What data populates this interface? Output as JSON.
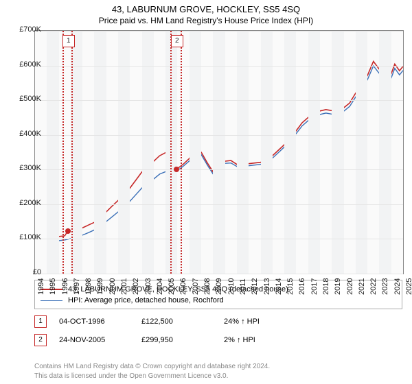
{
  "title": "43, LABURNUM GROVE, HOCKLEY, SS5 4SQ",
  "subtitle": "Price paid vs. HM Land Registry's House Price Index (HPI)",
  "chart": {
    "type": "line",
    "background_color": "#fafafa",
    "panel_border_color": "#888888",
    "grid_color": "#e5e5e5",
    "band_color": "#f2f3f4",
    "ylim": [
      0,
      700000
    ],
    "ytick_step": 100000,
    "ytick_labels": [
      "£0",
      "£100K",
      "£200K",
      "£300K",
      "£400K",
      "£500K",
      "£600K",
      "£700K"
    ],
    "xlim": [
      1994,
      2025
    ],
    "xticks": [
      1994,
      1995,
      1996,
      1997,
      1998,
      1999,
      2000,
      2001,
      2002,
      2003,
      2004,
      2005,
      2006,
      2007,
      2008,
      2009,
      2010,
      2011,
      2012,
      2013,
      2014,
      2015,
      2016,
      2017,
      2018,
      2019,
      2020,
      2021,
      2022,
      2023,
      2024,
      2025
    ],
    "label_fontsize": 11,
    "series": [
      {
        "name": "43, LABURNUM GROVE, HOCKLEY, SS5 4SQ (detached house)",
        "color": "#c62828",
        "line_width": 1.6,
        "data": [
          [
            1995.0,
            103000
          ],
          [
            1995.5,
            104000
          ],
          [
            1996.0,
            107000
          ],
          [
            1996.5,
            109000
          ],
          [
            1996.76,
            122500
          ],
          [
            1997.0,
            123000
          ],
          [
            1997.5,
            126000
          ],
          [
            1998.0,
            132000
          ],
          [
            1998.5,
            140000
          ],
          [
            1999.0,
            148000
          ],
          [
            1999.5,
            159000
          ],
          [
            2000.0,
            178000
          ],
          [
            2000.5,
            195000
          ],
          [
            2001.0,
            211000
          ],
          [
            2001.5,
            225000
          ],
          [
            2002.0,
            247000
          ],
          [
            2002.5,
            270000
          ],
          [
            2003.0,
            293000
          ],
          [
            2003.5,
            307000
          ],
          [
            2004.0,
            324000
          ],
          [
            2004.5,
            340000
          ],
          [
            2005.0,
            349000
          ],
          [
            2005.5,
            348000
          ],
          [
            2005.9,
            299950
          ],
          [
            2006.0,
            303000
          ],
          [
            2006.5,
            316000
          ],
          [
            2007.0,
            332000
          ],
          [
            2007.3,
            348000
          ],
          [
            2007.7,
            357000
          ],
          [
            2008.0,
            350000
          ],
          [
            2008.5,
            320000
          ],
          [
            2009.0,
            293000
          ],
          [
            2009.5,
            302000
          ],
          [
            2010.0,
            324000
          ],
          [
            2010.5,
            326000
          ],
          [
            2011.0,
            315000
          ],
          [
            2011.5,
            312000
          ],
          [
            2012.0,
            317000
          ],
          [
            2012.5,
            319000
          ],
          [
            2013.0,
            321000
          ],
          [
            2013.5,
            328000
          ],
          [
            2014.0,
            340000
          ],
          [
            2014.5,
            356000
          ],
          [
            2015.0,
            372000
          ],
          [
            2015.5,
            392000
          ],
          [
            2016.0,
            412000
          ],
          [
            2016.5,
            435000
          ],
          [
            2017.0,
            450000
          ],
          [
            2017.5,
            460000
          ],
          [
            2018.0,
            469000
          ],
          [
            2018.5,
            473000
          ],
          [
            2019.0,
            470000
          ],
          [
            2019.5,
            470000
          ],
          [
            2020.0,
            478000
          ],
          [
            2020.5,
            492000
          ],
          [
            2021.0,
            520000
          ],
          [
            2021.5,
            545000
          ],
          [
            2022.0,
            571000
          ],
          [
            2022.5,
            612000
          ],
          [
            2023.0,
            589000
          ],
          [
            2023.5,
            574000
          ],
          [
            2024.0,
            576000
          ],
          [
            2024.3,
            604000
          ],
          [
            2024.7,
            585000
          ],
          [
            2025.0,
            598000
          ]
        ]
      },
      {
        "name": "HPI: Average price, detached house, Rochford",
        "color": "#3a6fb7",
        "line_width": 1.4,
        "data": [
          [
            1995.0,
            93000
          ],
          [
            1995.5,
            94000
          ],
          [
            1996.0,
            95000
          ],
          [
            1996.5,
            97000
          ],
          [
            1997.0,
            101000
          ],
          [
            1997.5,
            105000
          ],
          [
            1998.0,
            111000
          ],
          [
            1998.5,
            118000
          ],
          [
            1999.0,
            126000
          ],
          [
            1999.5,
            135000
          ],
          [
            2000.0,
            150000
          ],
          [
            2000.5,
            164000
          ],
          [
            2001.0,
            178000
          ],
          [
            2001.5,
            190000
          ],
          [
            2002.0,
            209000
          ],
          [
            2002.5,
            228000
          ],
          [
            2003.0,
            247000
          ],
          [
            2003.5,
            259000
          ],
          [
            2004.0,
            273000
          ],
          [
            2004.5,
            287000
          ],
          [
            2005.0,
            294000
          ],
          [
            2005.5,
            293000
          ],
          [
            2006.0,
            297000
          ],
          [
            2006.5,
            310000
          ],
          [
            2007.0,
            325000
          ],
          [
            2007.3,
            340000
          ],
          [
            2007.7,
            349000
          ],
          [
            2008.0,
            343000
          ],
          [
            2008.5,
            314000
          ],
          [
            2009.0,
            287000
          ],
          [
            2009.5,
            296000
          ],
          [
            2010.0,
            318000
          ],
          [
            2010.5,
            319000
          ],
          [
            2011.0,
            309000
          ],
          [
            2011.5,
            306000
          ],
          [
            2012.0,
            311000
          ],
          [
            2012.5,
            313000
          ],
          [
            2013.0,
            315000
          ],
          [
            2013.5,
            321000
          ],
          [
            2014.0,
            333000
          ],
          [
            2014.5,
            349000
          ],
          [
            2015.0,
            365000
          ],
          [
            2015.5,
            384000
          ],
          [
            2016.0,
            404000
          ],
          [
            2016.5,
            426000
          ],
          [
            2017.0,
            441000
          ],
          [
            2017.5,
            451000
          ],
          [
            2018.0,
            459000
          ],
          [
            2018.5,
            463000
          ],
          [
            2019.0,
            460000
          ],
          [
            2019.5,
            460000
          ],
          [
            2020.0,
            468000
          ],
          [
            2020.5,
            482000
          ],
          [
            2021.0,
            509000
          ],
          [
            2021.5,
            533000
          ],
          [
            2022.0,
            559000
          ],
          [
            2022.5,
            599000
          ],
          [
            2023.0,
            577000
          ],
          [
            2023.5,
            562000
          ],
          [
            2024.0,
            564000
          ],
          [
            2024.3,
            592000
          ],
          [
            2024.7,
            573000
          ],
          [
            2025.0,
            586000
          ]
        ]
      }
    ],
    "markers": [
      {
        "id": "1",
        "x": 1996.76,
        "y": 122500,
        "band_start": 1996.3,
        "band_end": 1997.2
      },
      {
        "id": "2",
        "x": 2005.9,
        "y": 299950,
        "band_start": 2005.4,
        "band_end": 2006.4
      }
    ],
    "marker_color": "#c62828",
    "marker_dot_size": 8
  },
  "legend": {
    "series_0": "43, LABURNUM GROVE, HOCKLEY, SS5 4SQ (detached house)",
    "series_1": "HPI: Average price, detached house, Rochford"
  },
  "sales": [
    {
      "id": "1",
      "date": "04-OCT-1996",
      "price": "£122,500",
      "delta": "24% ↑ HPI"
    },
    {
      "id": "2",
      "date": "24-NOV-2005",
      "price": "£299,950",
      "delta": "2% ↑ HPI"
    }
  ],
  "footer": {
    "line1": "Contains HM Land Registry data © Crown copyright and database right 2024.",
    "line2": "This data is licensed under the Open Government Licence v3.0."
  }
}
